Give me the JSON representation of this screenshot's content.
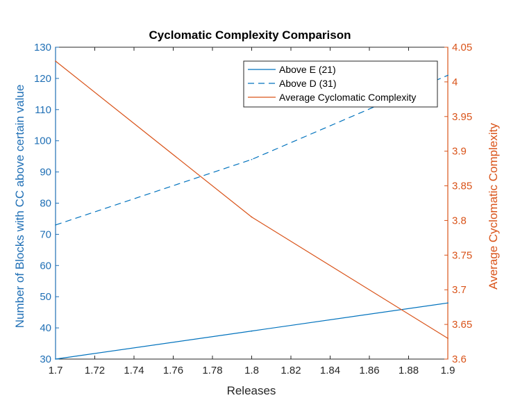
{
  "chart_data": {
    "type": "line",
    "title": "Cyclomatic Complexity Comparison",
    "xlabel": "Releases",
    "ylabel_left": "Number of Blocks with CC above certain value",
    "ylabel_right": "Average Cyclomatic Complexity",
    "xlim": [
      1.7,
      1.9
    ],
    "ylim_left": [
      30,
      130
    ],
    "ylim_right": [
      3.6,
      4.05
    ],
    "x_ticks": [
      "1.7",
      "1.72",
      "1.74",
      "1.76",
      "1.78",
      "1.8",
      "1.82",
      "1.84",
      "1.86",
      "1.88",
      "1.9"
    ],
    "y_left_ticks": [
      "30",
      "40",
      "50",
      "60",
      "70",
      "80",
      "90",
      "100",
      "110",
      "120",
      "130"
    ],
    "y_right_ticks": [
      "3.6",
      "3.65",
      "3.7",
      "3.75",
      "3.8",
      "3.85",
      "3.9",
      "3.95",
      "4",
      "4.05"
    ],
    "grid": false,
    "legend_position": "top-right",
    "colors": {
      "blue": "#0072bd",
      "orange": "#d95319",
      "left_axis": "#1f6fb5",
      "right_axis": "#d95319"
    },
    "series": [
      {
        "name": "Above E (21)",
        "axis": "left",
        "style": "solid",
        "color": "#0072bd",
        "x": [
          1.7,
          1.8,
          1.9
        ],
        "y": [
          30,
          39,
          48
        ]
      },
      {
        "name": "Above D (31)",
        "axis": "left",
        "style": "dashed",
        "color": "#0072bd",
        "x": [
          1.7,
          1.8,
          1.9
        ],
        "y": [
          73,
          94,
          121
        ]
      },
      {
        "name": "Average Cyclomatic Complexity",
        "axis": "right",
        "style": "solid",
        "color": "#d95319",
        "x": [
          1.7,
          1.8,
          1.9
        ],
        "y": [
          4.03,
          3.805,
          3.63
        ]
      }
    ]
  }
}
